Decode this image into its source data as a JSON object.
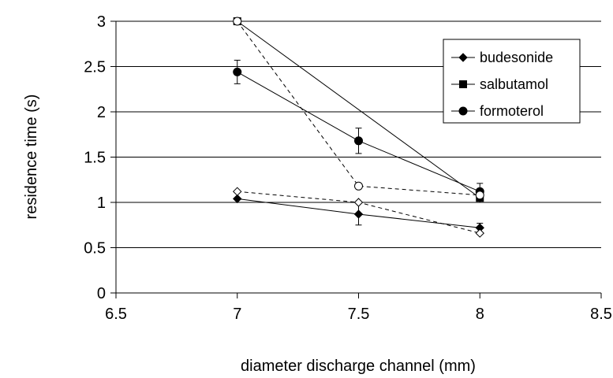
{
  "chart_data": {
    "type": "scatter",
    "title": "",
    "xlabel": "diameter discharge channel (mm)",
    "ylabel": "residence time (s)",
    "xlim": [
      6.5,
      8.5
    ],
    "ylim": [
      0,
      3
    ],
    "xticks": [
      6.5,
      7,
      7.5,
      8,
      8.5
    ],
    "yticks": [
      0,
      0.5,
      1,
      1.5,
      2,
      2.5,
      3
    ],
    "xtick_labels": [
      "6.5",
      "7",
      "7.5",
      "8",
      "8.5"
    ],
    "ytick_labels": [
      "0",
      "0.5",
      "1",
      "1.5",
      "2",
      "2.5",
      "3"
    ],
    "grid": "horizontal",
    "legend_position": "top-right",
    "series": [
      {
        "name": "budesonide",
        "marker": "diamond",
        "filled": true,
        "line": "solid",
        "x": [
          7,
          7.5,
          8
        ],
        "y": [
          1.04,
          0.87,
          0.72
        ],
        "err": [
          0,
          0.12,
          0.05
        ]
      },
      {
        "name": "salbutamol",
        "marker": "square",
        "filled": true,
        "line": "solid",
        "x": [
          7,
          8
        ],
        "y": [
          3.0,
          1.05
        ],
        "err": [
          0,
          0.05
        ]
      },
      {
        "name": "formoterol",
        "marker": "circle",
        "filled": true,
        "line": "solid",
        "x": [
          7,
          7.5,
          8
        ],
        "y": [
          2.44,
          1.68,
          1.12
        ],
        "err": [
          0.13,
          0.14,
          0.09
        ]
      },
      {
        "marker": "diamond",
        "filled": false,
        "line": "dashed",
        "x": [
          7,
          7.5,
          8
        ],
        "y": [
          1.12,
          1.0,
          0.66
        ],
        "err": [
          0,
          0,
          0
        ]
      },
      {
        "marker": "circle",
        "filled": false,
        "line": "dashed",
        "x": [
          7,
          7.5,
          8
        ],
        "y": [
          3.0,
          1.18,
          1.08
        ],
        "err": [
          0,
          0,
          0
        ]
      }
    ]
  }
}
